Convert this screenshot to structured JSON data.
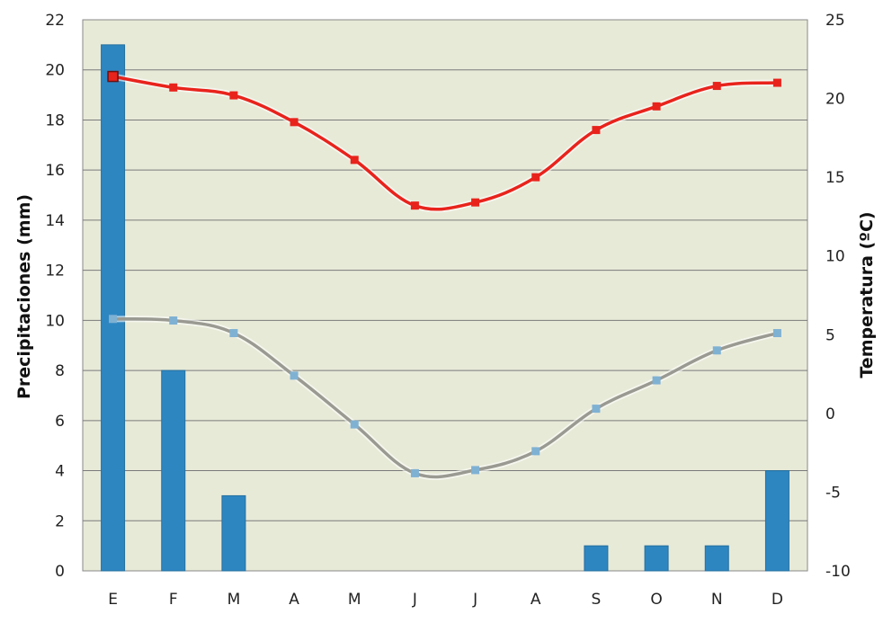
{
  "chart_data": {
    "type": "bar",
    "categories": [
      "E",
      "F",
      "M",
      "A",
      "M",
      "J",
      "J",
      "A",
      "S",
      "O",
      "N",
      "D"
    ],
    "y_left": {
      "label": "Precipitaciones (mm)",
      "min": 0,
      "max": 22,
      "step": 2
    },
    "y_right": {
      "label": "Temperatura (ºC)",
      "min": -10,
      "max": 25,
      "step": 5
    },
    "series": [
      {
        "type": "bar",
        "axis": "left",
        "color": "#2e86c1",
        "values": [
          21,
          8,
          3,
          0,
          0,
          0,
          0,
          0,
          1,
          1,
          1,
          4
        ]
      },
      {
        "type": "line",
        "axis": "right",
        "color": "#e8231c",
        "values": [
          21.4,
          20.7,
          20.2,
          18.5,
          16.1,
          13.2,
          13.4,
          15.0,
          18.0,
          19.5,
          20.8,
          21.0
        ]
      },
      {
        "type": "line",
        "axis": "right",
        "color": "#9a9a92",
        "marker_color": "#7fb1d3",
        "values": [
          6.0,
          5.9,
          5.1,
          2.4,
          -0.7,
          -3.8,
          -3.6,
          -2.4,
          0.3,
          2.1,
          4.0,
          5.1
        ]
      }
    ],
    "plot_background": "#e8ead8",
    "grid": true
  }
}
